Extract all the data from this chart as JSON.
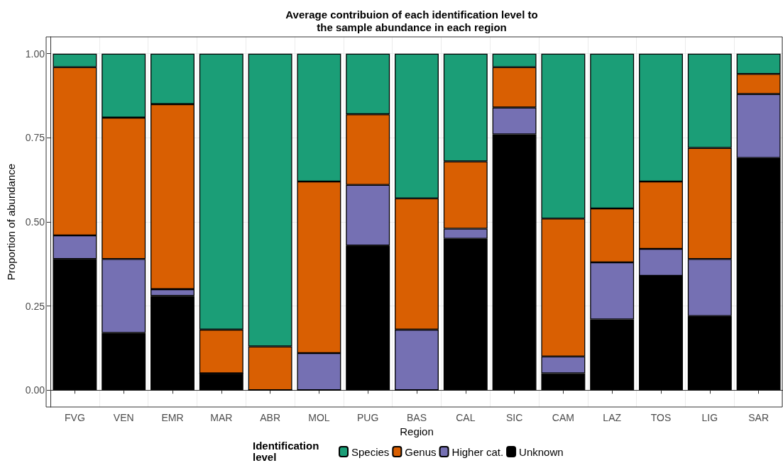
{
  "chart_data": {
    "type": "bar",
    "stacked": true,
    "title": "Average contribuion of each identification level to\nthe sample abundance in each region",
    "xlabel": "Region",
    "ylabel": "Proportion of abundance",
    "legend_title": "Identification\nlevel",
    "legend": "bottom",
    "grid": true,
    "categories": [
      "FVG",
      "VEN",
      "EMR",
      "MAR",
      "ABR",
      "MOL",
      "PUG",
      "BAS",
      "CAL",
      "SIC",
      "CAM",
      "LAZ",
      "TOS",
      "LIG",
      "SAR"
    ],
    "ylim": [
      -0.05,
      1.05
    ],
    "yticks": [
      {
        "value": 0,
        "label": "0.00"
      },
      {
        "value": 0.25,
        "label": "0.25"
      },
      {
        "value": 0.5,
        "label": "0.50"
      },
      {
        "value": 0.75,
        "label": "0.75"
      },
      {
        "value": 1,
        "label": "1.00"
      }
    ],
    "series": [
      {
        "name": "Unknown",
        "color": "#000000",
        "values": [
          0.39,
          0.17,
          0.28,
          0.05,
          0,
          0,
          0.43,
          0,
          0.45,
          0.76,
          0.05,
          0.21,
          0.34,
          0.22,
          0.69
        ]
      },
      {
        "name": "Higher cat.",
        "color": "#7570b3",
        "values": [
          0.07,
          0.22,
          0.02,
          0,
          0,
          0.11,
          0.18,
          0.18,
          0.03,
          0.08,
          0.05,
          0.17,
          0.08,
          0.17,
          0.19
        ]
      },
      {
        "name": "Genus",
        "color": "#d95f02",
        "values": [
          0.5,
          0.42,
          0.55,
          0.13,
          0.13,
          0.51,
          0.21,
          0.39,
          0.2,
          0.12,
          0.41,
          0.16,
          0.2,
          0.33,
          0.06
        ]
      },
      {
        "name": "Species",
        "color": "#1b9e77",
        "values": [
          0.04,
          0.19,
          0.15,
          0.82,
          0.87,
          0.38,
          0.18,
          0.43,
          0.32,
          0.04,
          0.49,
          0.46,
          0.38,
          0.28,
          0.06
        ]
      }
    ]
  }
}
